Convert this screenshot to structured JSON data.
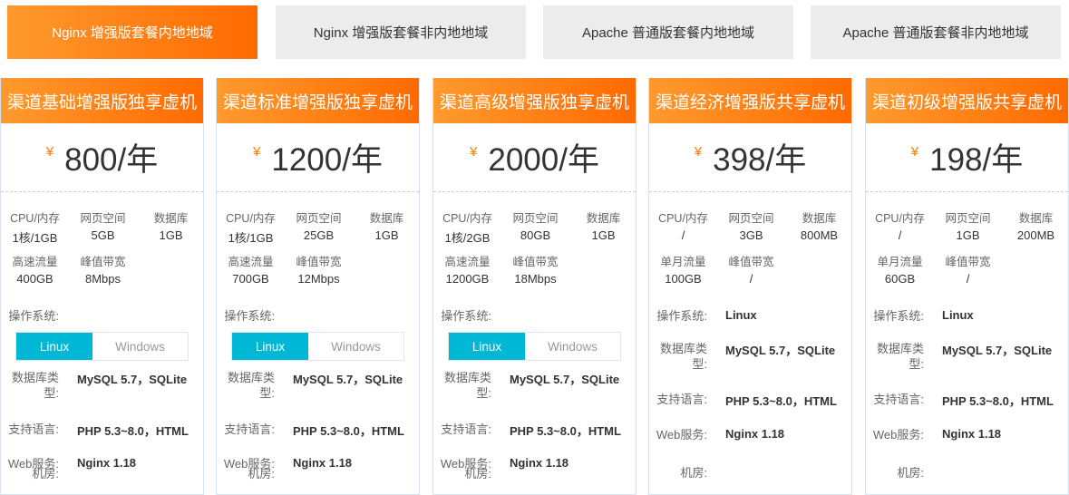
{
  "tabs": [
    {
      "label": "Nginx 增强版套餐内地地域",
      "active": true
    },
    {
      "label": "Nginx 增强版套餐非内地地域"
    },
    {
      "label": "Apache 普通版套餐内地地域"
    },
    {
      "label": "Apache 普通版套餐非内地地域"
    }
  ],
  "colors": {
    "accent": "#ff6a00",
    "toggle_on": "#00b7d6"
  },
  "currency": "¥",
  "labels": {
    "os": "操作系统:",
    "db": "数据库类型:",
    "lang": "支持语言:",
    "web": "Web服务:",
    "room": "机房:"
  },
  "cards": [
    {
      "title": "渠道基础增强版独享虚机",
      "price": "800/年",
      "specs": [
        [
          "CPU/内存",
          "1核/1GB"
        ],
        [
          "网页空间",
          "5GB"
        ],
        [
          "数据库",
          "1GB"
        ],
        [
          "高速流量",
          "400GB"
        ],
        [
          "峰值带宽",
          "8Mbps"
        ]
      ],
      "os_toggle": [
        "Linux",
        "Windows"
      ],
      "db": "MySQL 5.7，SQLite",
      "lang": "PHP 5.3~8.0，HTML",
      "web": "Nginx 1.18"
    },
    {
      "title": "渠道标准增强版独享虚机",
      "price": "1200/年",
      "specs": [
        [
          "CPU/内存",
          "1核/1GB"
        ],
        [
          "网页空间",
          "25GB"
        ],
        [
          "数据库",
          "1GB"
        ],
        [
          "高速流量",
          "700GB"
        ],
        [
          "峰值带宽",
          "12Mbps"
        ]
      ],
      "os_toggle": [
        "Linux",
        "Windows"
      ],
      "db": "MySQL 5.7，SQLite",
      "lang": "PHP 5.3~8.0，HTML",
      "web": "Nginx 1.18"
    },
    {
      "title": "渠道高级增强版独享虚机",
      "price": "2000/年",
      "specs": [
        [
          "CPU/内存",
          "1核/2GB"
        ],
        [
          "网页空间",
          "80GB"
        ],
        [
          "数据库",
          "1GB"
        ],
        [
          "高速流量",
          "1200GB"
        ],
        [
          "峰值带宽",
          "18Mbps"
        ]
      ],
      "os_toggle": [
        "Linux",
        "Windows"
      ],
      "db": "MySQL 5.7，SQLite",
      "lang": "PHP 5.3~8.0，HTML",
      "web": "Nginx 1.18"
    },
    {
      "title": "渠道经济增强版共享虚机",
      "price": "398/年",
      "specs": [
        [
          "CPU/内存",
          "/"
        ],
        [
          "网页空间",
          "3GB"
        ],
        [
          "数据库",
          "800MB"
        ],
        [
          "单月流量",
          "100GB"
        ],
        [
          "峰值带宽",
          "/"
        ]
      ],
      "os": "Linux",
      "db": "MySQL 5.7，SQLite",
      "lang": "PHP 5.3~8.0，HTML",
      "web": "Nginx 1.18"
    },
    {
      "title": "渠道初级增强版共享虚机",
      "price": "198/年",
      "specs": [
        [
          "CPU/内存",
          "/"
        ],
        [
          "网页空间",
          "1GB"
        ],
        [
          "数据库",
          "200MB"
        ],
        [
          "单月流量",
          "60GB"
        ],
        [
          "峰值带宽",
          "/"
        ]
      ],
      "os": "Linux",
      "db": "MySQL 5.7，SQLite",
      "lang": "PHP 5.3~8.0，HTML",
      "web": "Nginx 1.18"
    }
  ]
}
